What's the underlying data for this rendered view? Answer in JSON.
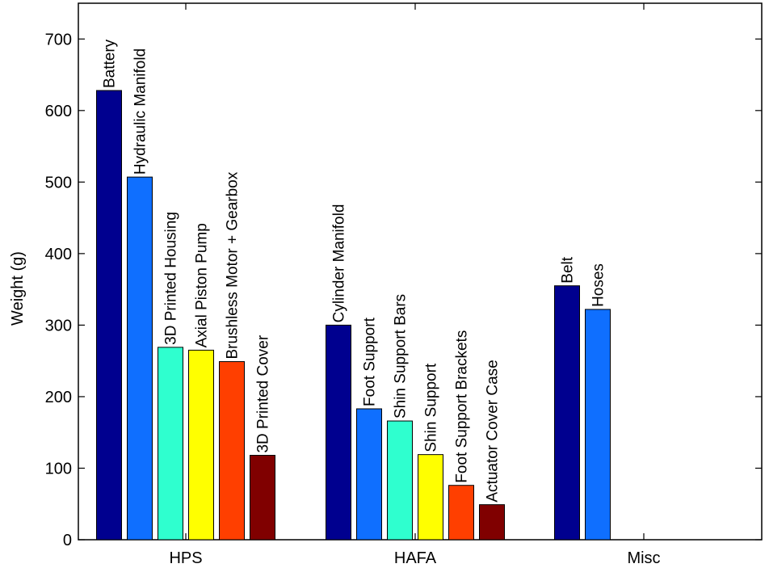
{
  "chart_data": {
    "type": "bar",
    "title": "",
    "xlabel": "",
    "ylabel": "Weight (g)",
    "ylim": [
      0,
      750
    ],
    "yticks": [
      0,
      100,
      200,
      300,
      400,
      500,
      600,
      700
    ],
    "grid": false,
    "categories": [
      "HPS",
      "HAFA",
      "Misc"
    ],
    "groups": [
      {
        "category": "HPS",
        "bars": [
          {
            "label": "Battery",
            "value": 628,
            "color": "#00008f"
          },
          {
            "label": "Hydraulic Manifold",
            "value": 507,
            "color": "#0f6fff"
          },
          {
            "label": "3D Printed Housing",
            "value": 269,
            "color": "#2fffcf"
          },
          {
            "label": "Axial Piston Pump",
            "value": 265,
            "color": "#ffff00"
          },
          {
            "label": "Brushless Motor + Gearbox",
            "value": 249,
            "color": "#ff3f00"
          },
          {
            "label": "3D Printed Cover",
            "value": 118,
            "color": "#800000"
          }
        ]
      },
      {
        "category": "HAFA",
        "bars": [
          {
            "label": "Cylinder Manifold",
            "value": 300,
            "color": "#00008f"
          },
          {
            "label": "Foot Support",
            "value": 183,
            "color": "#0f6fff"
          },
          {
            "label": "Shin Support Bars",
            "value": 166,
            "color": "#2fffcf"
          },
          {
            "label": "Shin Support",
            "value": 119,
            "color": "#ffff00"
          },
          {
            "label": "Foot Support Brackets",
            "value": 76,
            "color": "#ff3f00"
          },
          {
            "label": "Actuator Cover Case",
            "value": 49,
            "color": "#800000"
          }
        ]
      },
      {
        "category": "Misc",
        "bars": [
          {
            "label": "Belt",
            "value": 355,
            "color": "#00008f"
          },
          {
            "label": "Hoses",
            "value": 322,
            "color": "#0f6fff"
          }
        ]
      }
    ]
  }
}
